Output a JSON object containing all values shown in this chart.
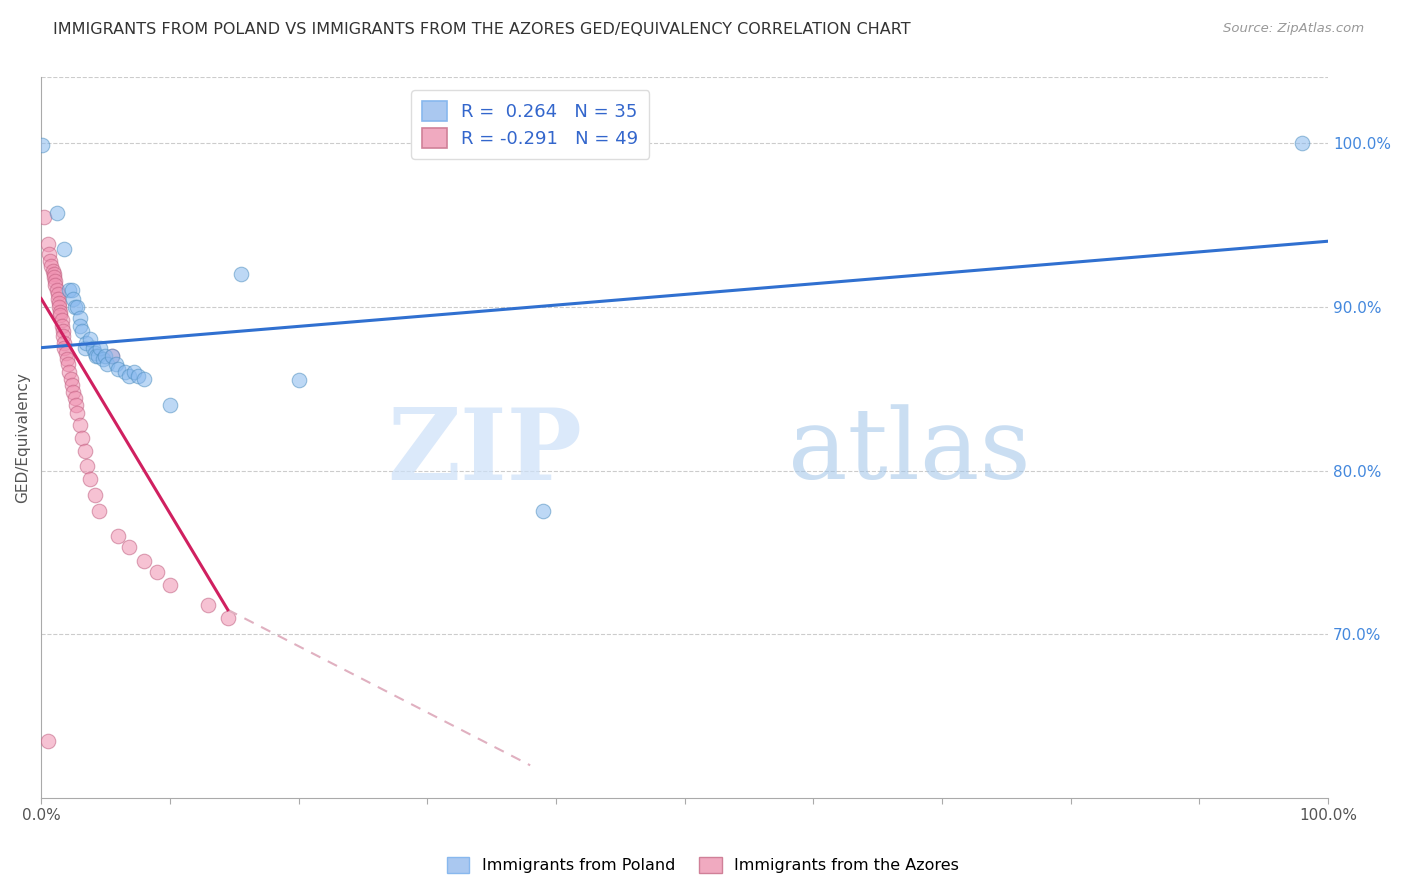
{
  "title": "IMMIGRANTS FROM POLAND VS IMMIGRANTS FROM THE AZORES GED/EQUIVALENCY CORRELATION CHART",
  "source": "Source: ZipAtlas.com",
  "ylabel": "GED/Equivalency",
  "right_ytick_labels": [
    "70.0%",
    "80.0%",
    "90.0%",
    "100.0%"
  ],
  "right_ytick_values": [
    0.7,
    0.8,
    0.9,
    1.0
  ],
  "legend_label1": "R =  0.264   N = 35",
  "legend_label2": "R = -0.291   N = 49",
  "legend_color1": "#aac8f0",
  "legend_color2": "#f0aac0",
  "watermark_zip": "ZIP",
  "watermark_atlas": "atlas",
  "poland_color": "#88b8ee",
  "azores_color": "#f090b0",
  "trendline_poland_color": "#3070d0",
  "trendline_azores_color": "#d02060",
  "trendline_azores_dashed_color": "#e0b0c0",
  "background_color": "#ffffff",
  "poland_scatter": [
    [
      0.001,
      0.999
    ],
    [
      0.012,
      0.957
    ],
    [
      0.018,
      0.935
    ],
    [
      0.022,
      0.91
    ],
    [
      0.024,
      0.91
    ],
    [
      0.025,
      0.905
    ],
    [
      0.026,
      0.9
    ],
    [
      0.028,
      0.9
    ],
    [
      0.03,
      0.893
    ],
    [
      0.03,
      0.888
    ],
    [
      0.032,
      0.885
    ],
    [
      0.034,
      0.875
    ],
    [
      0.035,
      0.878
    ],
    [
      0.038,
      0.88
    ],
    [
      0.04,
      0.875
    ],
    [
      0.042,
      0.872
    ],
    [
      0.043,
      0.87
    ],
    [
      0.044,
      0.87
    ],
    [
      0.046,
      0.875
    ],
    [
      0.048,
      0.868
    ],
    [
      0.05,
      0.87
    ],
    [
      0.051,
      0.865
    ],
    [
      0.055,
      0.87
    ],
    [
      0.058,
      0.865
    ],
    [
      0.06,
      0.862
    ],
    [
      0.065,
      0.86
    ],
    [
      0.068,
      0.858
    ],
    [
      0.072,
      0.86
    ],
    [
      0.075,
      0.858
    ],
    [
      0.08,
      0.856
    ],
    [
      0.1,
      0.84
    ],
    [
      0.155,
      0.92
    ],
    [
      0.2,
      0.855
    ],
    [
      0.39,
      0.775
    ],
    [
      0.98,
      1.0
    ]
  ],
  "azores_scatter": [
    [
      0.002,
      0.955
    ],
    [
      0.005,
      0.938
    ],
    [
      0.006,
      0.932
    ],
    [
      0.007,
      0.928
    ],
    [
      0.008,
      0.925
    ],
    [
      0.009,
      0.922
    ],
    [
      0.01,
      0.92
    ],
    [
      0.01,
      0.918
    ],
    [
      0.011,
      0.916
    ],
    [
      0.011,
      0.913
    ],
    [
      0.012,
      0.91
    ],
    [
      0.013,
      0.908
    ],
    [
      0.013,
      0.905
    ],
    [
      0.014,
      0.902
    ],
    [
      0.014,
      0.9
    ],
    [
      0.015,
      0.897
    ],
    [
      0.015,
      0.895
    ],
    [
      0.016,
      0.892
    ],
    [
      0.016,
      0.888
    ],
    [
      0.017,
      0.885
    ],
    [
      0.017,
      0.882
    ],
    [
      0.018,
      0.878
    ],
    [
      0.018,
      0.875
    ],
    [
      0.019,
      0.872
    ],
    [
      0.02,
      0.868
    ],
    [
      0.021,
      0.865
    ],
    [
      0.022,
      0.86
    ],
    [
      0.023,
      0.856
    ],
    [
      0.024,
      0.852
    ],
    [
      0.025,
      0.848
    ],
    [
      0.026,
      0.844
    ],
    [
      0.027,
      0.84
    ],
    [
      0.028,
      0.835
    ],
    [
      0.03,
      0.828
    ],
    [
      0.032,
      0.82
    ],
    [
      0.034,
      0.812
    ],
    [
      0.036,
      0.803
    ],
    [
      0.038,
      0.795
    ],
    [
      0.042,
      0.785
    ],
    [
      0.045,
      0.775
    ],
    [
      0.055,
      0.87
    ],
    [
      0.06,
      0.76
    ],
    [
      0.068,
      0.753
    ],
    [
      0.08,
      0.745
    ],
    [
      0.09,
      0.738
    ],
    [
      0.1,
      0.73
    ],
    [
      0.13,
      0.718
    ],
    [
      0.145,
      0.71
    ],
    [
      0.005,
      0.635
    ]
  ],
  "xmin": 0.0,
  "xmax": 1.0,
  "ymin": 0.6,
  "ymax": 1.04,
  "trendline_poland_x0": 0.0,
  "trendline_poland_x1": 1.0,
  "trendline_poland_y0": 0.875,
  "trendline_poland_y1": 0.94,
  "trendline_azores_solid_x0": 0.0,
  "trendline_azores_solid_x1": 0.145,
  "trendline_azores_solid_y0": 0.905,
  "trendline_azores_solid_y1": 0.715,
  "trendline_azores_dash_x0": 0.145,
  "trendline_azores_dash_x1": 0.38,
  "trendline_azores_dash_y0": 0.715,
  "trendline_azores_dash_y1": 0.62
}
